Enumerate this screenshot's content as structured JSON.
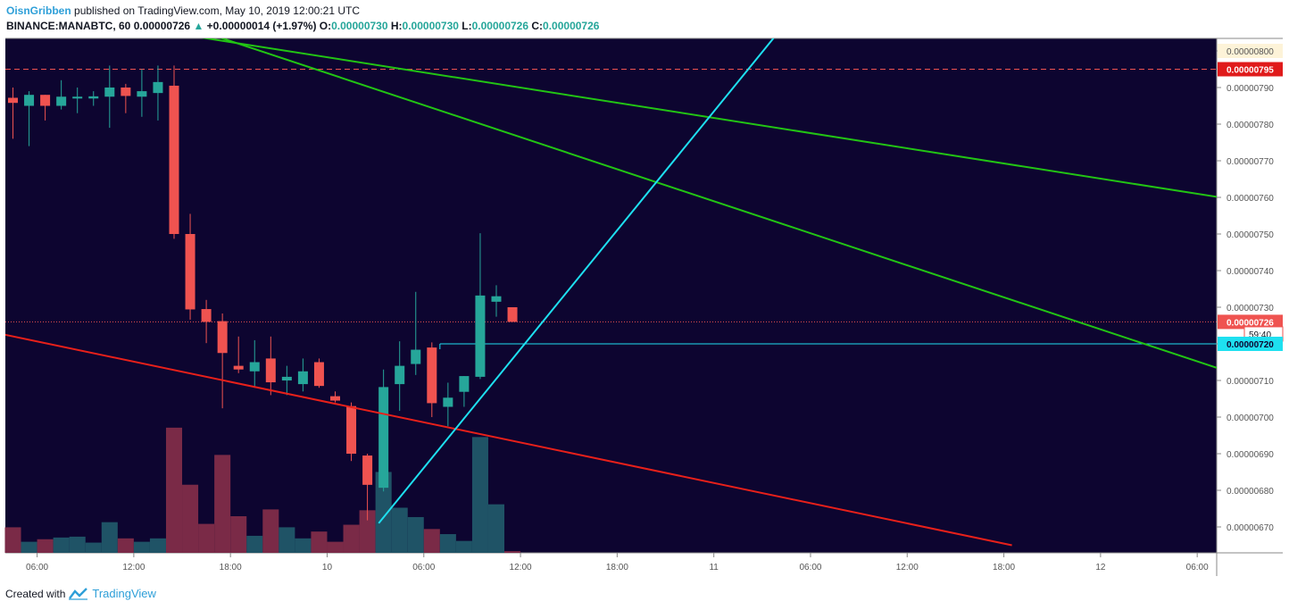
{
  "header": {
    "author": "OisnGribben",
    "published": "published on TradingView.com, May 10, 2019 12:00:21 UTC",
    "symbol": "BINANCE:MANABTC, 60",
    "last": "0.00000726",
    "change": "+0.00000014 (+1.97%)",
    "o_label": "O:",
    "o_value": "0.00000730",
    "h_label": "H:",
    "h_value": "0.00000730",
    "l_label": "L:",
    "l_value": "0.00000726",
    "c_label": "C:",
    "c_value": "0.00000726"
  },
  "footer": {
    "created": "Created with",
    "brand": "TradingView"
  },
  "colors": {
    "background": "#0d0530",
    "up": "#26a69a",
    "down": "#ef5350",
    "vol_up": "#1f5366",
    "vol_down": "#7a2a47",
    "trend_green": "#22c414",
    "trend_red": "#e8201a",
    "trend_cyan": "#1ee0f0"
  },
  "chart_data": {
    "type": "candlestick",
    "interval": "60",
    "ylim": [
      6.65e-06,
      8.03e-06
    ],
    "y_ticks": [
      "0.00000670",
      "0.00000680",
      "0.00000690",
      "0.00000700",
      "0.00000710",
      "0.00000720",
      "0.00000730",
      "0.00000740",
      "0.00000750",
      "0.00000760",
      "0.00000770",
      "0.00000780",
      "0.00000790",
      "0.00000800"
    ],
    "x_ticks": [
      {
        "label": "06:00",
        "i": 1.5
      },
      {
        "label": "12:00",
        "i": 7.5
      },
      {
        "label": "18:00",
        "i": 13.5
      },
      {
        "label": "10",
        "i": 19.5
      },
      {
        "label": "06:00",
        "i": 25.5
      },
      {
        "label": "12:00",
        "i": 31.5
      },
      {
        "label": "18:00",
        "i": 37.5
      },
      {
        "label": "11",
        "i": 43.5
      },
      {
        "label": "06:00",
        "i": 49.5
      },
      {
        "label": "12:00",
        "i": 55.5
      },
      {
        "label": "18:00",
        "i": 61.5
      },
      {
        "label": "12",
        "i": 67.5
      },
      {
        "label": "06:00",
        "i": 73.5
      }
    ],
    "candles": [
      {
        "o": 787.2,
        "h": 790,
        "l": 776,
        "c": 785.8,
        "v": 30
      },
      {
        "o": 785,
        "h": 789,
        "l": 774,
        "c": 788,
        "v": 13
      },
      {
        "o": 788,
        "h": 788,
        "l": 781,
        "c": 785,
        "v": 16
      },
      {
        "o": 785,
        "h": 792,
        "l": 784,
        "c": 787.5,
        "v": 18
      },
      {
        "o": 787,
        "h": 790,
        "l": 783,
        "c": 787.5,
        "v": 19
      },
      {
        "o": 787,
        "h": 789,
        "l": 785,
        "c": 787.6,
        "v": 12
      },
      {
        "o": 787.5,
        "h": 796,
        "l": 779,
        "c": 790,
        "v": 36
      },
      {
        "o": 790,
        "h": 791,
        "l": 783,
        "c": 787.7,
        "v": 17
      },
      {
        "o": 787.5,
        "h": 795,
        "l": 782,
        "c": 789,
        "v": 13
      },
      {
        "o": 788.5,
        "h": 796,
        "l": 781,
        "c": 791.5,
        "v": 17
      },
      {
        "o": 790.5,
        "h": 796,
        "l": 748.7,
        "c": 750,
        "v": 147
      },
      {
        "o": 750,
        "h": 755.5,
        "l": 726.6,
        "c": 729.4,
        "v": 80
      },
      {
        "o": 729.5,
        "h": 732,
        "l": 720.2,
        "c": 726,
        "v": 34
      },
      {
        "o": 726.2,
        "h": 728.3,
        "l": 702.4,
        "c": 717.5,
        "v": 115
      },
      {
        "o": 714,
        "h": 722,
        "l": 712,
        "c": 713,
        "v": 43
      },
      {
        "o": 712.5,
        "h": 721,
        "l": 708,
        "c": 715,
        "v": 20
      },
      {
        "o": 716,
        "h": 722,
        "l": 706,
        "c": 709.5,
        "v": 51
      },
      {
        "o": 710,
        "h": 714,
        "l": 706,
        "c": 711,
        "v": 30
      },
      {
        "o": 709,
        "h": 716,
        "l": 707,
        "c": 712.5,
        "v": 17
      },
      {
        "o": 715,
        "h": 716,
        "l": 708,
        "c": 708.5,
        "v": 25
      },
      {
        "o": 705.7,
        "h": 707,
        "l": 704,
        "c": 704.5,
        "v": 13
      },
      {
        "o": 703,
        "h": 704,
        "l": 688,
        "c": 690,
        "v": 33
      },
      {
        "o": 689.5,
        "h": 690,
        "l": 671.8,
        "c": 681.5,
        "v": 50
      },
      {
        "o": 680.7,
        "h": 713,
        "l": 679.7,
        "c": 708.2,
        "v": 95
      },
      {
        "o": 709,
        "h": 720.7,
        "l": 701.7,
        "c": 714,
        "v": 53
      },
      {
        "o": 714.5,
        "h": 734.2,
        "l": 711.5,
        "c": 718.4,
        "v": 42
      },
      {
        "o": 719,
        "h": 720.4,
        "l": 700,
        "c": 703.8,
        "v": 28
      },
      {
        "o": 702.8,
        "h": 709.4,
        "l": 697.5,
        "c": 705.3,
        "v": 22
      },
      {
        "o": 706.9,
        "h": 711.2,
        "l": 702.8,
        "c": 711.2,
        "v": 14
      },
      {
        "o": 711,
        "h": 750.2,
        "l": 710.4,
        "c": 733.2,
        "v": 136
      },
      {
        "o": 731.5,
        "h": 736,
        "l": 727.4,
        "c": 733,
        "v": 57
      },
      {
        "o": 730,
        "h": 730,
        "l": 726,
        "c": 726,
        "v": 2
      }
    ],
    "volume_max": 150,
    "lines": [
      {
        "name": "resistance 1",
        "color": "green",
        "p1": {
          "i": 11.2,
          "y": 804
        },
        "p2": {
          "i": 75.5,
          "y": 759.6
        }
      },
      {
        "name": "resistance 2",
        "color": "green",
        "p1": {
          "i": 12.6,
          "y": 804
        },
        "p2": {
          "i": 75.5,
          "y": 712.3
        }
      },
      {
        "name": "support",
        "color": "red",
        "p1": {
          "i": -0.5,
          "y": 722.5
        },
        "p2": {
          "i": 62,
          "y": 665
        }
      },
      {
        "name": "rising support",
        "color": "cyan",
        "p1": {
          "i": 22.7,
          "y": 671
        },
        "p2": {
          "i": 47.3,
          "y": 804
        }
      }
    ],
    "levels": [
      {
        "y": 795,
        "label": "0.00000795",
        "style": "dashed",
        "color": "red"
      },
      {
        "y": 726,
        "label": "0.00000726",
        "style": "dotted",
        "color": "red"
      },
      {
        "y": 720,
        "label": "0.00000720",
        "style": "solid",
        "color": "cyan",
        "from_i": 26.5
      }
    ],
    "countdown": "59:40"
  }
}
